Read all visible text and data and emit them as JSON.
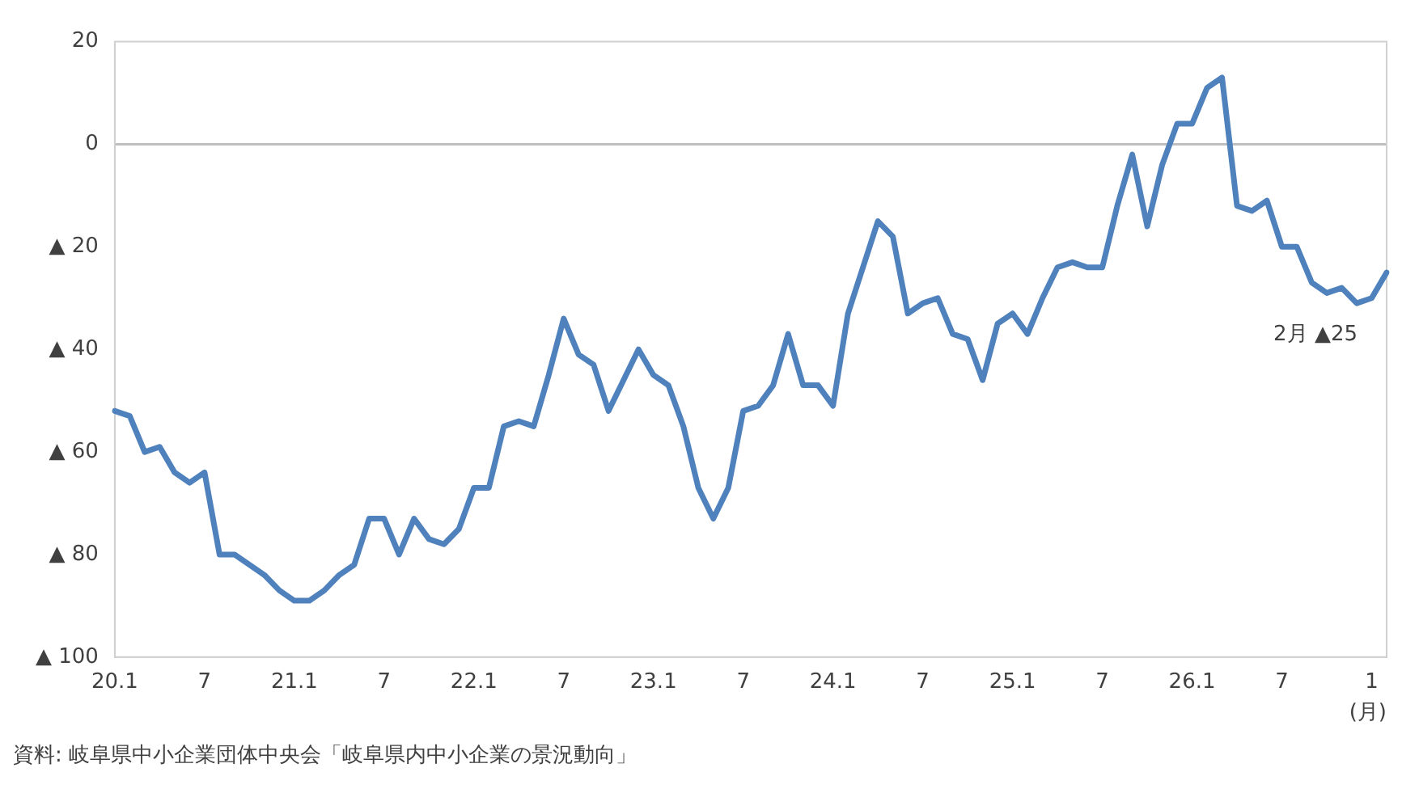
{
  "chart_data": {
    "type": "line",
    "xlabel": "(月)",
    "categories": [
      "20.1",
      null,
      null,
      null,
      null,
      null,
      "7",
      null,
      null,
      null,
      null,
      null,
      "21.1",
      null,
      null,
      null,
      null,
      null,
      "7",
      null,
      null,
      null,
      null,
      null,
      "22.1",
      null,
      null,
      null,
      null,
      null,
      "7",
      null,
      null,
      null,
      null,
      null,
      "23.1",
      null,
      null,
      null,
      null,
      null,
      "7",
      null,
      null,
      null,
      null,
      null,
      "24.1",
      null,
      null,
      null,
      null,
      null,
      "7",
      null,
      null,
      null,
      null,
      null,
      "25.1",
      null,
      null,
      null,
      null,
      null,
      "7",
      null,
      null,
      null,
      null,
      null,
      "26.1",
      null,
      null,
      null,
      null,
      null,
      "7",
      null,
      null,
      null,
      null,
      null,
      "1",
      null
    ],
    "series": [
      {
        "color": "#4f81bd",
        "values": [
          -52,
          -53,
          -60,
          -59,
          -64,
          -66,
          -64,
          -80,
          -80,
          -82,
          -84,
          -87,
          -89,
          -89,
          -87,
          -84,
          -82,
          -73,
          -73,
          -80,
          -73,
          -77,
          -78,
          -75,
          -67,
          -67,
          -55,
          -54,
          -55,
          -45,
          -34,
          -41,
          -43,
          -52,
          -46,
          -40,
          -45,
          -47,
          -55,
          -67,
          -73,
          -67,
          -52,
          -51,
          -47,
          -37,
          -47,
          -47,
          -51,
          -33,
          -24,
          -15,
          -18,
          -33,
          -31,
          -30,
          -37,
          -38,
          -46,
          -35,
          -33,
          -37,
          -30,
          -24,
          -23,
          -24,
          -24,
          -12,
          -2,
          -16,
          -4,
          4,
          4,
          11,
          13,
          -12,
          -13,
          -11,
          -20,
          -20,
          -27,
          -29,
          -28,
          -31,
          -30,
          -25
        ]
      }
    ],
    "ylim": [
      -100,
      20
    ],
    "yticks": [
      {
        "value": -100,
        "label": "▲ 100"
      },
      {
        "value": -80,
        "label": "▲ 80"
      },
      {
        "value": -60,
        "label": "▲ 60"
      },
      {
        "value": -40,
        "label": "▲ 40"
      },
      {
        "value": -20,
        "label": "▲ 20"
      },
      0,
      20
    ],
    "grid": false,
    "legend": false,
    "marker": "none",
    "line_style": "solid",
    "ref_lines": [
      {
        "axis": "y",
        "value": 0,
        "color": "#bfbfbf"
      }
    ],
    "annotations": [
      {
        "text": "2月 ▲25",
        "y": -25
      },
      "資料: 岐阜県中小企業団体中央会「岐阜県内中小企業の景況動向」"
    ]
  }
}
